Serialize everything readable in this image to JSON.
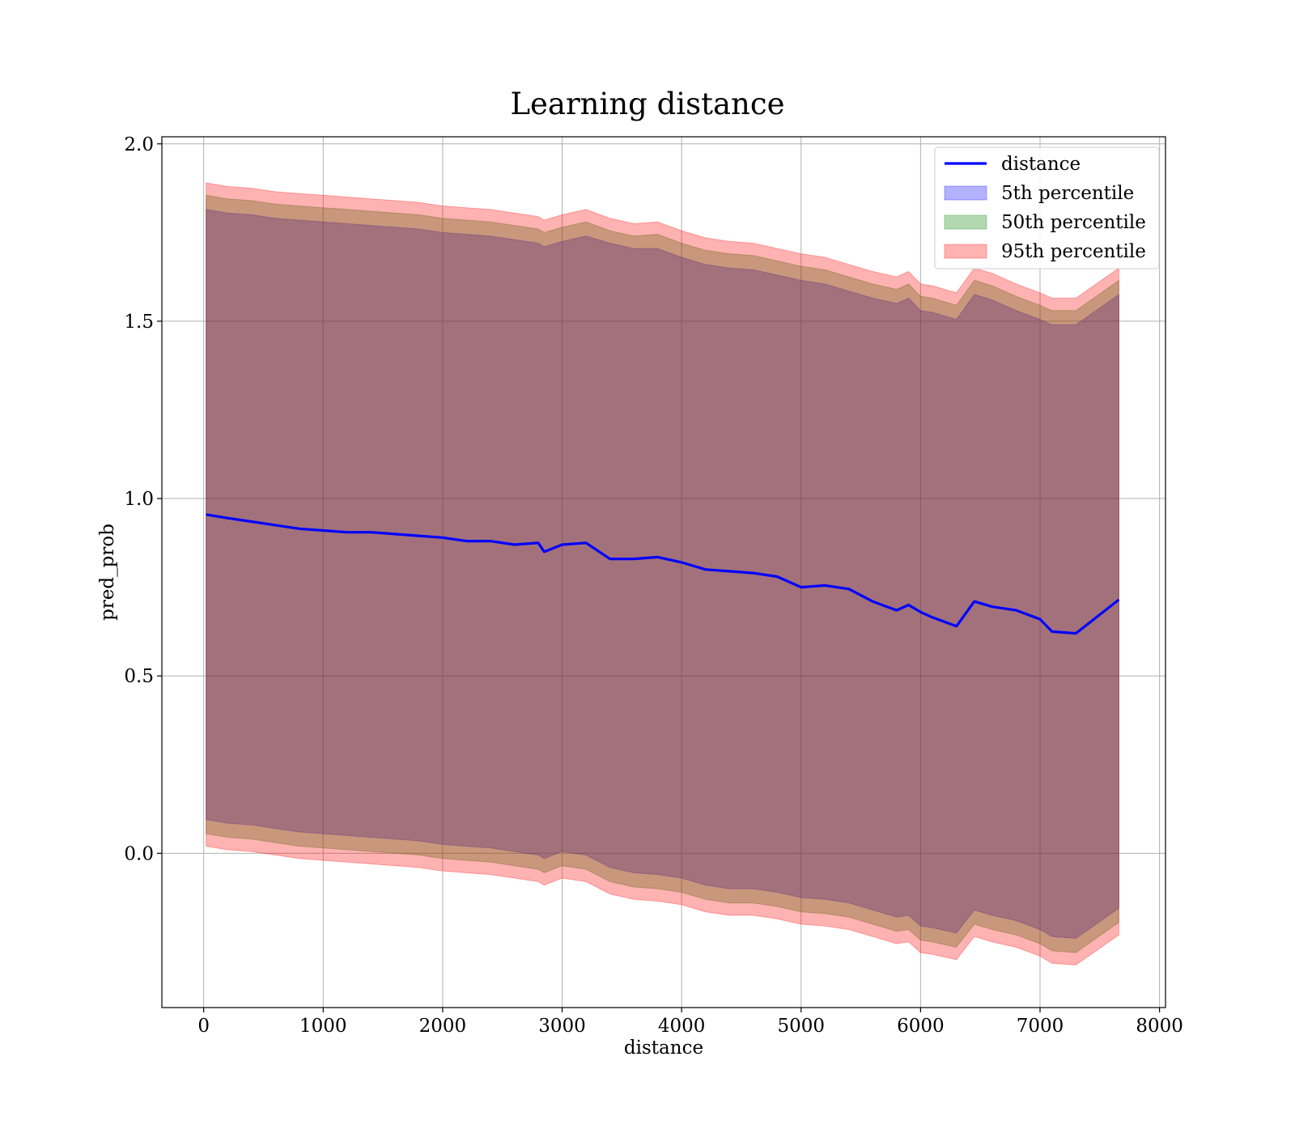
{
  "chart_data": {
    "type": "area",
    "title": "Learning distance",
    "xlabel": "distance",
    "ylabel": "pred_prob",
    "xlim": [
      -350,
      8050
    ],
    "ylim": [
      -0.435,
      2.02
    ],
    "xticks": [
      0,
      1000,
      2000,
      3000,
      4000,
      5000,
      6000,
      7000,
      8000
    ],
    "xtick_labels": [
      "0",
      "1000",
      "2000",
      "3000",
      "4000",
      "5000",
      "6000",
      "7000",
      "8000"
    ],
    "yticks": [
      0.0,
      0.5,
      1.0,
      1.5,
      2.0
    ],
    "ytick_labels": [
      "0.0",
      "0.5",
      "1.0",
      "1.5",
      "2.0"
    ],
    "grid": true,
    "legend_position": "upper right",
    "x": [
      20,
      200,
      400,
      600,
      800,
      1000,
      1200,
      1400,
      1600,
      1800,
      2000,
      2200,
      2400,
      2600,
      2800,
      2850,
      3000,
      3200,
      3400,
      3600,
      3800,
      4000,
      4200,
      4400,
      4600,
      4800,
      5000,
      5200,
      5400,
      5600,
      5800,
      5900,
      6000,
      6100,
      6300,
      6450,
      6600,
      6800,
      7000,
      7100,
      7300,
      7660
    ],
    "series": [
      {
        "name": "distance",
        "kind": "line",
        "color": "#0000ff",
        "values": [
          0.955,
          0.945,
          0.935,
          0.925,
          0.915,
          0.91,
          0.905,
          0.905,
          0.9,
          0.895,
          0.89,
          0.88,
          0.88,
          0.87,
          0.875,
          0.85,
          0.87,
          0.875,
          0.83,
          0.83,
          0.835,
          0.82,
          0.8,
          0.795,
          0.79,
          0.78,
          0.75,
          0.755,
          0.745,
          0.71,
          0.685,
          0.7,
          0.68,
          0.665,
          0.64,
          0.71,
          0.695,
          0.685,
          0.66,
          0.625,
          0.62,
          0.715
        ]
      },
      {
        "name": "5th percentile",
        "kind": "band",
        "color": "#0000ff",
        "alpha": 0.3,
        "upper": [
          1.815,
          1.805,
          1.8,
          1.79,
          1.785,
          1.78,
          1.775,
          1.77,
          1.765,
          1.76,
          1.75,
          1.745,
          1.74,
          1.73,
          1.72,
          1.71,
          1.725,
          1.74,
          1.72,
          1.705,
          1.705,
          1.68,
          1.66,
          1.65,
          1.645,
          1.63,
          1.615,
          1.605,
          1.585,
          1.565,
          1.55,
          1.565,
          1.53,
          1.525,
          1.505,
          1.575,
          1.56,
          1.53,
          1.505,
          1.49,
          1.49,
          1.575
        ],
        "lower": [
          0.095,
          0.085,
          0.08,
          0.07,
          0.06,
          0.055,
          0.05,
          0.045,
          0.04,
          0.035,
          0.025,
          0.02,
          0.015,
          0.005,
          -0.005,
          -0.015,
          0.005,
          -0.005,
          -0.04,
          -0.055,
          -0.06,
          -0.07,
          -0.09,
          -0.1,
          -0.1,
          -0.11,
          -0.125,
          -0.13,
          -0.14,
          -0.16,
          -0.18,
          -0.175,
          -0.205,
          -0.21,
          -0.225,
          -0.16,
          -0.175,
          -0.19,
          -0.215,
          -0.235,
          -0.24,
          -0.155
        ]
      },
      {
        "name": "50th percentile",
        "kind": "band",
        "color": "#008000",
        "alpha": 0.3,
        "upper": [
          1.855,
          1.845,
          1.84,
          1.83,
          1.825,
          1.82,
          1.815,
          1.81,
          1.805,
          1.8,
          1.79,
          1.785,
          1.78,
          1.77,
          1.76,
          1.75,
          1.765,
          1.78,
          1.755,
          1.74,
          1.745,
          1.72,
          1.7,
          1.69,
          1.685,
          1.67,
          1.655,
          1.645,
          1.625,
          1.605,
          1.59,
          1.605,
          1.57,
          1.565,
          1.545,
          1.615,
          1.6,
          1.57,
          1.545,
          1.53,
          1.53,
          1.615
        ],
        "lower": [
          0.055,
          0.045,
          0.04,
          0.03,
          0.02,
          0.015,
          0.01,
          0.005,
          0.0,
          -0.005,
          -0.015,
          -0.02,
          -0.025,
          -0.035,
          -0.045,
          -0.055,
          -0.035,
          -0.045,
          -0.08,
          -0.095,
          -0.1,
          -0.11,
          -0.13,
          -0.14,
          -0.14,
          -0.15,
          -0.165,
          -0.17,
          -0.18,
          -0.2,
          -0.22,
          -0.215,
          -0.245,
          -0.25,
          -0.265,
          -0.2,
          -0.215,
          -0.23,
          -0.255,
          -0.275,
          -0.28,
          -0.195
        ]
      },
      {
        "name": "95th percentile",
        "kind": "band",
        "color": "#ff0000",
        "alpha": 0.3,
        "upper": [
          1.89,
          1.88,
          1.875,
          1.865,
          1.86,
          1.855,
          1.85,
          1.845,
          1.84,
          1.835,
          1.825,
          1.82,
          1.815,
          1.805,
          1.795,
          1.785,
          1.8,
          1.815,
          1.79,
          1.775,
          1.78,
          1.755,
          1.735,
          1.725,
          1.72,
          1.705,
          1.69,
          1.68,
          1.66,
          1.64,
          1.625,
          1.64,
          1.605,
          1.6,
          1.58,
          1.65,
          1.635,
          1.605,
          1.58,
          1.565,
          1.565,
          1.65
        ],
        "lower": [
          0.02,
          0.01,
          0.005,
          -0.005,
          -0.015,
          -0.02,
          -0.025,
          -0.03,
          -0.035,
          -0.04,
          -0.05,
          -0.055,
          -0.06,
          -0.07,
          -0.08,
          -0.09,
          -0.07,
          -0.08,
          -0.115,
          -0.13,
          -0.135,
          -0.145,
          -0.165,
          -0.175,
          -0.175,
          -0.185,
          -0.2,
          -0.205,
          -0.215,
          -0.235,
          -0.255,
          -0.25,
          -0.28,
          -0.285,
          -0.3,
          -0.235,
          -0.25,
          -0.265,
          -0.29,
          -0.31,
          -0.315,
          -0.23
        ]
      }
    ]
  }
}
